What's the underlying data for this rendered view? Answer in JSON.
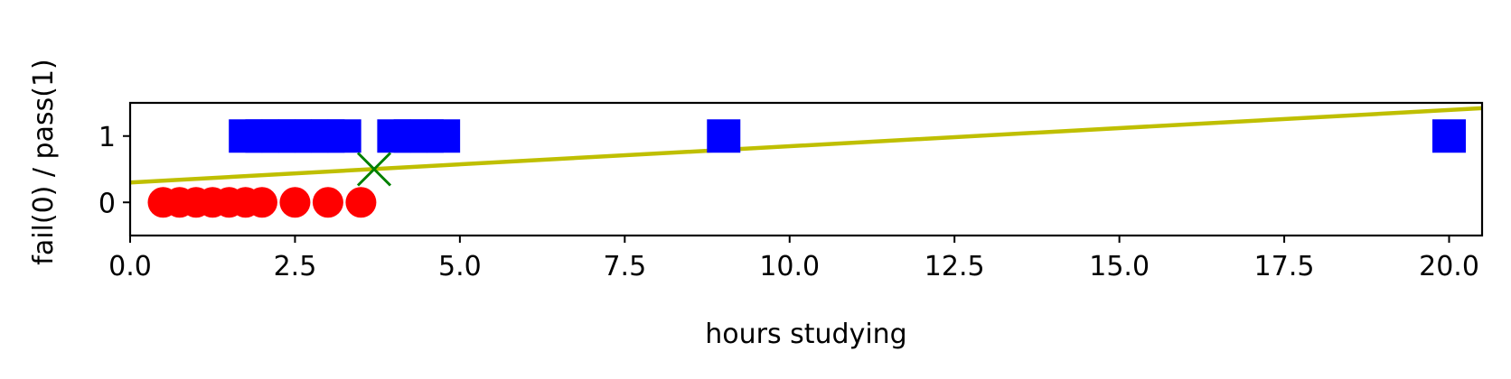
{
  "chart_data": {
    "type": "scatter",
    "title": "",
    "xlabel": "hours studying",
    "ylabel": "fail(0) / pass(1)",
    "xlim": [
      0,
      20.5
    ],
    "ylim": [
      -0.5,
      1.5
    ],
    "xticks": [
      0.0,
      2.5,
      5.0,
      7.5,
      10.0,
      12.5,
      15.0,
      17.5,
      20.0
    ],
    "xtick_labels": [
      "0.0",
      "2.5",
      "5.0",
      "7.5",
      "10.0",
      "12.5",
      "15.0",
      "17.5",
      "20.0"
    ],
    "yticks": [
      0,
      1
    ],
    "ytick_labels": [
      "0",
      "1"
    ],
    "grid": false,
    "series": [
      {
        "marker": "circle",
        "color": "#ff0000",
        "points": [
          [
            0.5,
            0
          ],
          [
            0.75,
            0
          ],
          [
            1.0,
            0
          ],
          [
            1.25,
            0
          ],
          [
            1.5,
            0
          ],
          [
            1.75,
            0
          ],
          [
            2.0,
            0
          ],
          [
            2.5,
            0
          ],
          [
            3.0,
            0
          ],
          [
            3.5,
            0
          ]
        ]
      },
      {
        "marker": "square",
        "color": "#0000ff",
        "points": [
          [
            1.75,
            1
          ],
          [
            2.0,
            1
          ],
          [
            2.25,
            1
          ],
          [
            2.5,
            1
          ],
          [
            2.75,
            1
          ],
          [
            3.0,
            1
          ],
          [
            3.25,
            1
          ],
          [
            4.0,
            1
          ],
          [
            4.25,
            1
          ],
          [
            4.5,
            1
          ],
          [
            4.75,
            1
          ],
          [
            9.0,
            1
          ],
          [
            20.0,
            1
          ]
        ]
      },
      {
        "marker": "x",
        "color": "#008000",
        "points": [
          [
            3.7,
            0.5
          ]
        ]
      }
    ],
    "line": {
      "color": "#bfbf00",
      "points": [
        [
          0,
          0.3
        ],
        [
          20.5,
          1.42
        ]
      ]
    }
  }
}
